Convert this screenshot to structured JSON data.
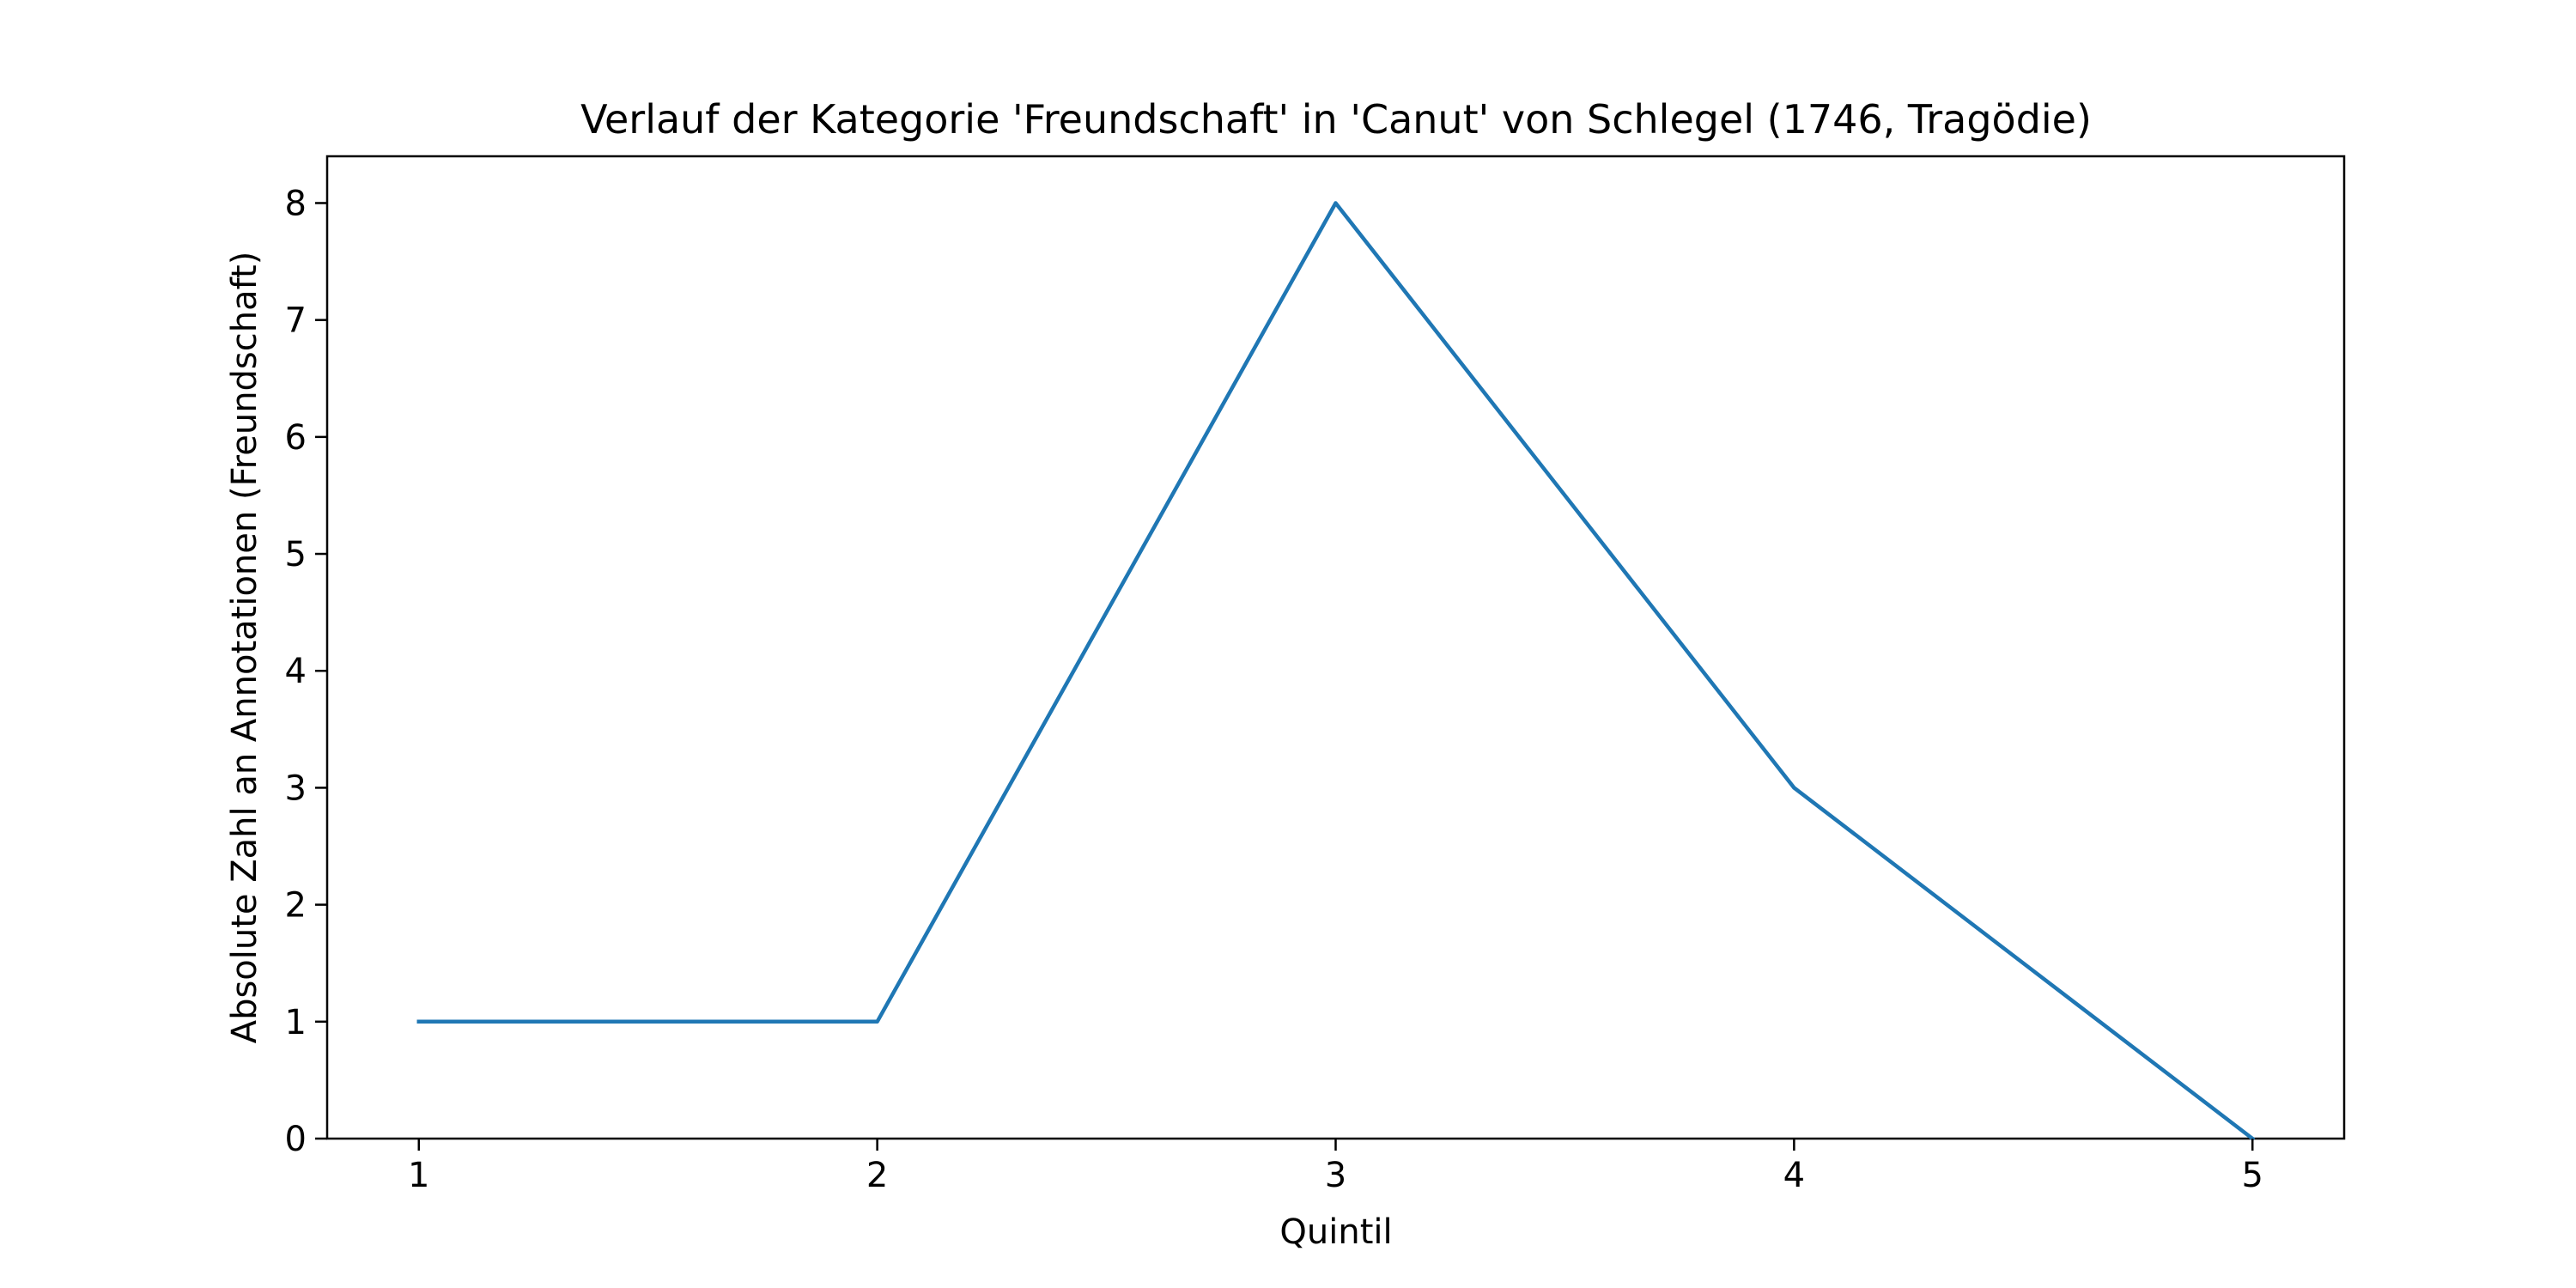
{
  "chart_data": {
    "type": "line",
    "title": "Verlauf der Kategorie 'Freundschaft' in 'Canut' von Schlegel (1746, Tragödie)",
    "xlabel": "Quintil",
    "ylabel": "Absolute Zahl an Annotationen (Freundschaft)",
    "x": [
      1,
      2,
      3,
      4,
      5
    ],
    "series": [
      {
        "values": [
          1,
          1,
          8,
          3,
          0
        ],
        "color": "#1f77b4"
      }
    ],
    "xticks": [
      "1",
      "2",
      "3",
      "4",
      "5"
    ],
    "yticks": [
      "0",
      "1",
      "2",
      "3",
      "4",
      "5",
      "6",
      "7",
      "8"
    ],
    "xlim": [
      0.8,
      5.2
    ],
    "ylim": [
      0,
      8.4
    ],
    "grid": false,
    "legend": false
  }
}
